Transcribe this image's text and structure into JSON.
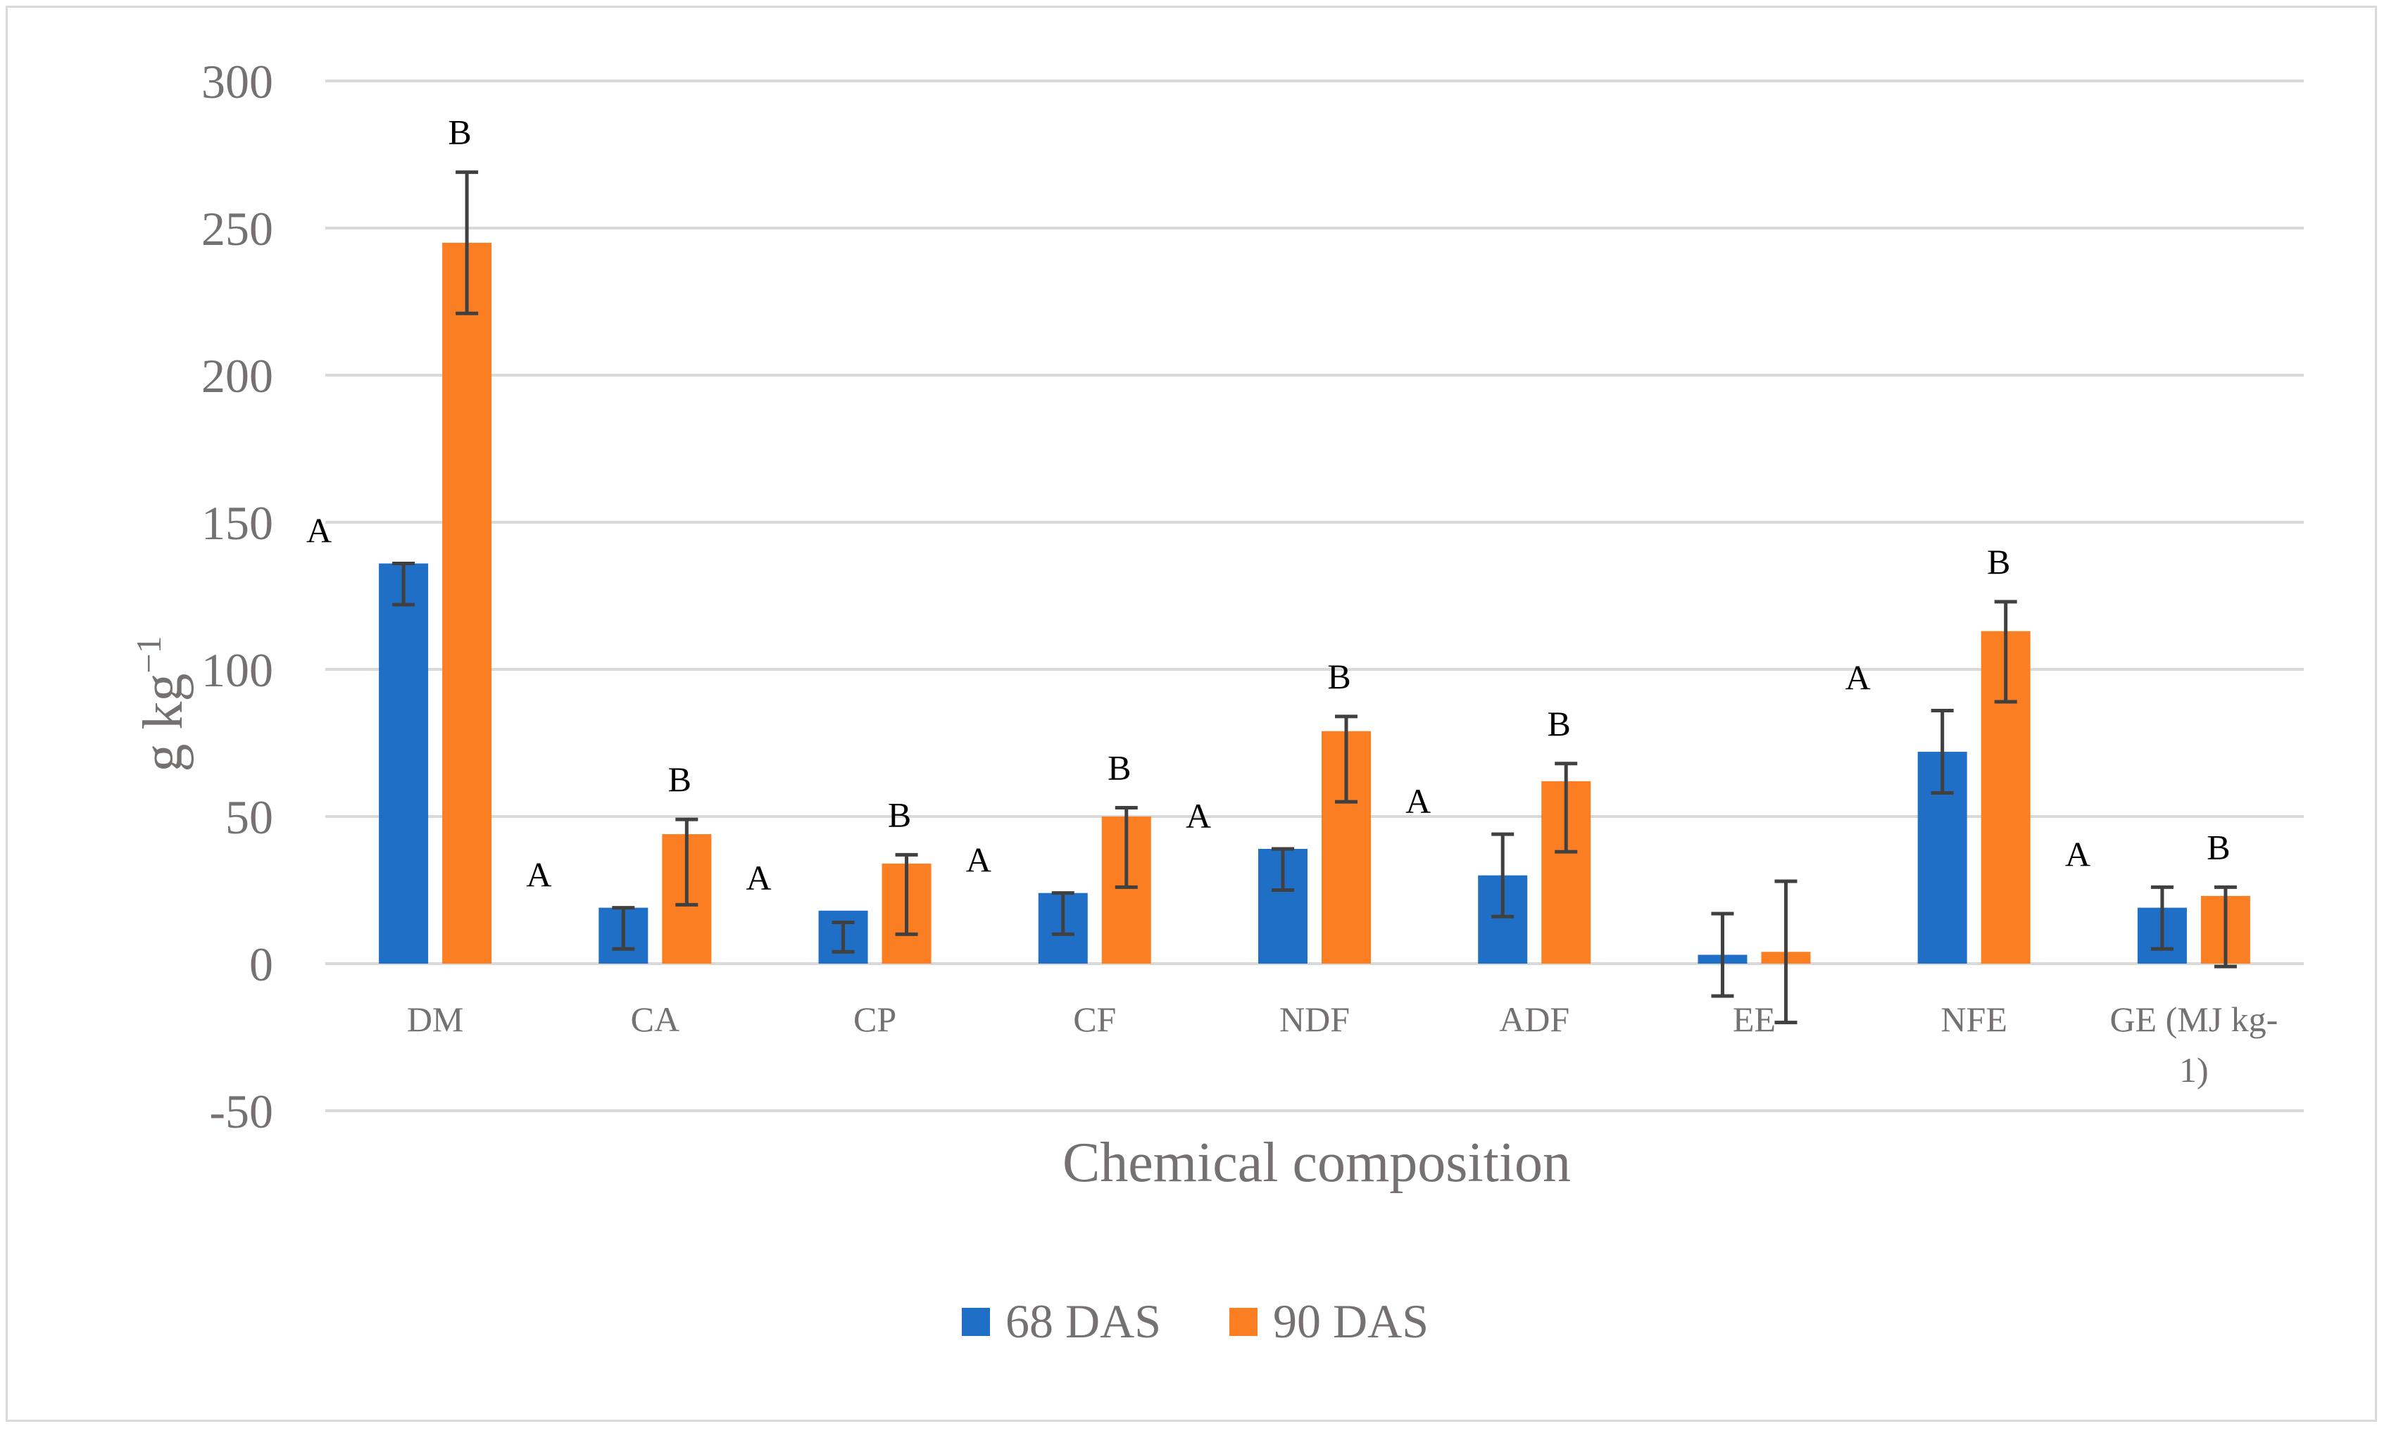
{
  "chart_data": {
    "type": "bar",
    "title": "",
    "xlabel": "Chemical composition",
    "ylabel": "g kg",
    "ylabel_superscript": "−1",
    "ylim": [
      -50,
      300
    ],
    "yticks": [
      300,
      250,
      200,
      150,
      100,
      50,
      0,
      -50
    ],
    "grid": true,
    "legend_position": "bottom",
    "categories": [
      "DM",
      "CA",
      "CP",
      "CF",
      "NDF",
      "ADF",
      "EE",
      "NFE",
      "GE (MJ kg-1)"
    ],
    "category_display": [
      [
        "DM"
      ],
      [
        "CA"
      ],
      [
        "CP"
      ],
      [
        "CF"
      ],
      [
        "NDF"
      ],
      [
        "ADF"
      ],
      [
        "EE"
      ],
      [
        "NFE"
      ],
      [
        "GE (MJ kg-",
        "1)"
      ]
    ],
    "series": [
      {
        "name": "68 DAS",
        "color": "#1f6fc6",
        "values": [
          136,
          19,
          18,
          24,
          39,
          30,
          3,
          72,
          19
        ],
        "error_low": [
          122,
          5,
          4,
          10,
          25,
          16,
          -11,
          58,
          5
        ],
        "error_high": [
          136,
          19,
          14,
          24,
          39,
          44,
          17,
          86,
          26
        ],
        "significance_labels": [
          "A",
          "A",
          "A",
          "A",
          "A",
          "A",
          "",
          "A",
          "A"
        ]
      },
      {
        "name": "90 DAS",
        "color": "#fb7f22",
        "values": [
          245,
          44,
          34,
          50,
          79,
          62,
          4,
          113,
          23
        ],
        "error_low": [
          221,
          20,
          10,
          26,
          55,
          38,
          -20,
          89,
          -1
        ],
        "error_high": [
          269,
          49,
          37,
          53,
          84,
          68,
          28,
          123,
          26
        ],
        "significance_labels": [
          "B",
          "B",
          "B",
          "B",
          "B",
          "B",
          "",
          "B",
          "B"
        ]
      }
    ]
  }
}
